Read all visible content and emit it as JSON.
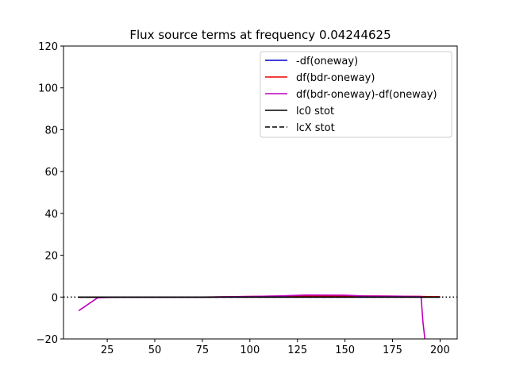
{
  "chart_data": {
    "type": "line",
    "title": "Flux source terms at frequency 0.04244625",
    "xlabel": "",
    "ylabel": "",
    "xlim": [
      2,
      209
    ],
    "ylim": [
      -20,
      120
    ],
    "x_ticks": [
      25,
      50,
      75,
      100,
      125,
      150,
      175,
      200
    ],
    "y_ticks": [
      -20,
      0,
      20,
      40,
      60,
      80,
      100,
      120
    ],
    "x_tick_labels": [
      "25",
      "50",
      "75",
      "100",
      "125",
      "150",
      "175",
      "200"
    ],
    "y_tick_labels": [
      "−20",
      "0",
      "20",
      "40",
      "60",
      "80",
      "100",
      "120"
    ],
    "legend_position": "top-right",
    "reference_line": {
      "y": 0,
      "style": "dotted",
      "color": "#000000"
    },
    "series": [
      {
        "name": "-df(oneway)",
        "color": "#0000cc",
        "style": "solid",
        "x": [
          10,
          20,
          40,
          60,
          80,
          100,
          125,
          150,
          175,
          190,
          195,
          200
        ],
        "y": [
          0,
          0,
          0,
          0,
          0,
          0,
          0,
          0,
          0,
          0,
          0,
          0
        ]
      },
      {
        "name": "df(bdr-oneway)",
        "color": "#ee0000",
        "style": "solid",
        "x": [
          10,
          20,
          40,
          60,
          80,
          100,
          125,
          150,
          175,
          190,
          195,
          200
        ],
        "y": [
          0,
          0,
          0,
          0,
          0,
          0.3,
          0.6,
          0.6,
          0.4,
          0.3,
          0.2,
          0.2
        ]
      },
      {
        "name": "df(bdr-oneway)-df(oneway)",
        "color": "#bb00bb",
        "style": "solid",
        "x": [
          10,
          20,
          30,
          50,
          75,
          100,
          115,
          130,
          150,
          160,
          175,
          190,
          191,
          192
        ],
        "y": [
          -6.5,
          -0.3,
          0,
          0,
          0,
          0.3,
          0.5,
          1.0,
          0.9,
          0.5,
          0.4,
          0.3,
          -12,
          -20
        ]
      },
      {
        "name": "lc0 stot",
        "color": "#000000",
        "style": "solid",
        "x": [
          10,
          50,
          100,
          150,
          200
        ],
        "y": [
          0,
          0,
          0,
          0,
          0
        ]
      },
      {
        "name": "lcX stot",
        "color": "#000000",
        "style": "dashed",
        "x": [
          10,
          50,
          100,
          150,
          200
        ],
        "y": [
          0,
          0,
          0,
          0,
          0
        ]
      }
    ]
  }
}
